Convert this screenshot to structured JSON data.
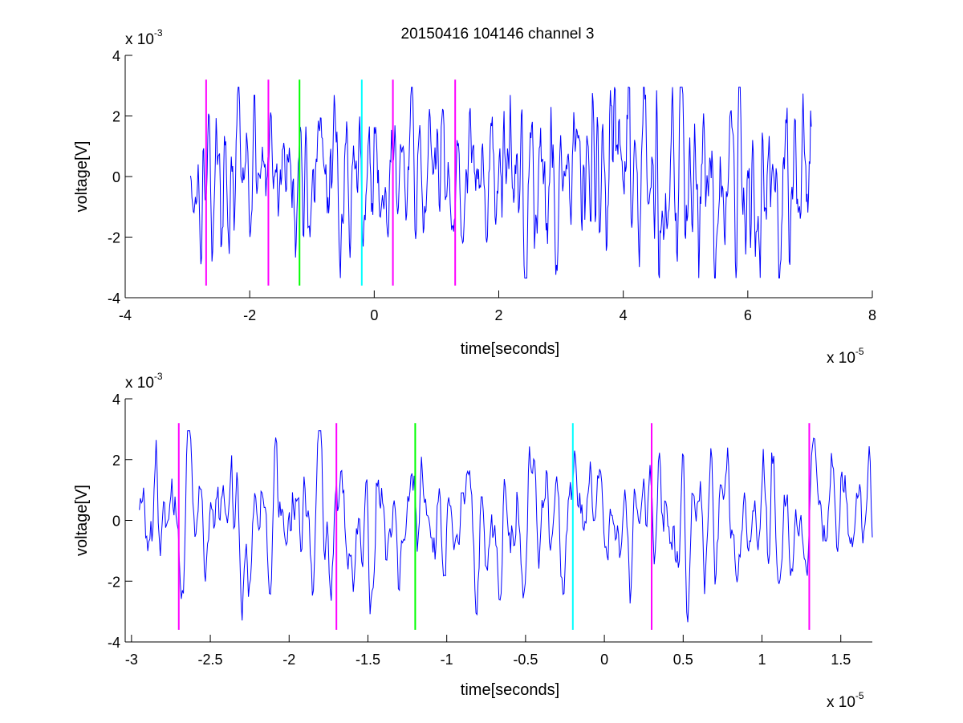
{
  "chart_data": [
    {
      "type": "line",
      "title": "20150416 104146 channel 3",
      "xlabel": "time[seconds]",
      "ylabel": "voltage[V]",
      "x_exponent": {
        "base": "x 10",
        "power": "-5"
      },
      "y_exponent": {
        "base": "x 10",
        "power": "-3"
      },
      "xlim": [
        -4,
        8
      ],
      "ylim": [
        -4,
        4
      ],
      "xticks": [
        -4,
        -2,
        0,
        2,
        4,
        6,
        8
      ],
      "xtick_labels": [
        "-4",
        "-2",
        "0",
        "2",
        "4",
        "6",
        "8"
      ],
      "yticks": [
        -4,
        -2,
        0,
        2,
        4
      ],
      "ytick_labels": [
        "-4",
        "-2",
        "0",
        "2",
        "4"
      ],
      "grid": false,
      "signal": {
        "color": "#0000ff",
        "x_start": -2.95,
        "x_end": 7.02,
        "points": 900,
        "seed": 17,
        "amplitude": 0.9,
        "late_amplitude": 1.25
      },
      "markers": [
        {
          "x": -2.7,
          "color": "#ff00ff",
          "y_range": [
            -3.6,
            3.2
          ]
        },
        {
          "x": -1.7,
          "color": "#ff00ff",
          "y_range": [
            -3.6,
            3.2
          ]
        },
        {
          "x": -1.2,
          "color": "#00ff00",
          "y_range": [
            -3.6,
            3.2
          ]
        },
        {
          "x": -0.2,
          "color": "#00ffff",
          "y_range": [
            -3.6,
            3.2
          ]
        },
        {
          "x": 0.3,
          "color": "#ff00ff",
          "y_range": [
            -3.6,
            3.2
          ]
        },
        {
          "x": 1.3,
          "color": "#ff00ff",
          "y_range": [
            -3.6,
            3.2
          ]
        }
      ]
    },
    {
      "type": "line",
      "title": "",
      "xlabel": "time[seconds]",
      "ylabel": "voltage[V]",
      "x_exponent": {
        "base": "x 10",
        "power": "-5"
      },
      "y_exponent": {
        "base": "x 10",
        "power": "-3"
      },
      "xlim": [
        -3.04,
        1.7
      ],
      "ylim": [
        -4,
        4
      ],
      "xticks": [
        -3,
        -2.5,
        -2,
        -1.5,
        -1,
        -0.5,
        0,
        0.5,
        1,
        1.5
      ],
      "xtick_labels": [
        "-3",
        "-2.5",
        "-2",
        "-1.5",
        "-1",
        "-0.5",
        "0",
        "0.5",
        "1",
        "1.5"
      ],
      "yticks": [
        -4,
        -2,
        0,
        2,
        4
      ],
      "ytick_labels": [
        "-4",
        "-2",
        "0",
        "2",
        "4"
      ],
      "grid": false,
      "signal": {
        "color": "#0000ff",
        "x_start": -2.95,
        "x_end": 1.7,
        "points": 700,
        "seed": 29,
        "amplitude": 0.85,
        "late_amplitude": 0.85
      },
      "markers": [
        {
          "x": -2.7,
          "color": "#ff00ff",
          "y_range": [
            -3.6,
            3.2
          ]
        },
        {
          "x": -1.7,
          "color": "#ff00ff",
          "y_range": [
            -3.6,
            3.2
          ]
        },
        {
          "x": -1.2,
          "color": "#00ff00",
          "y_range": [
            -3.6,
            3.2
          ]
        },
        {
          "x": -0.2,
          "color": "#00ffff",
          "y_range": [
            -3.6,
            3.2
          ]
        },
        {
          "x": 0.3,
          "color": "#ff00ff",
          "y_range": [
            -3.6,
            3.2
          ]
        },
        {
          "x": 1.3,
          "color": "#ff00ff",
          "y_range": [
            -3.6,
            3.2
          ]
        }
      ]
    }
  ]
}
